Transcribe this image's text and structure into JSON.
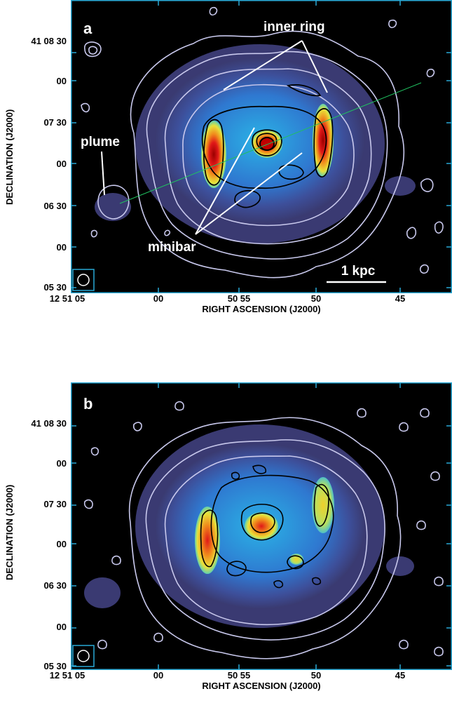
{
  "chart_data": [
    {
      "type": "heatmap",
      "panel_label": "a",
      "xlabel": "RIGHT ASCENSION (J2000)",
      "ylabel": "DECLINATION (J2000)",
      "xticks": [
        "12 51 05",
        "00",
        "50 55",
        "50",
        "45"
      ],
      "yticks": [
        "41 08 30",
        "00",
        "07 30",
        "00",
        "06 30",
        "00",
        "05 30"
      ],
      "annotations": [
        "inner ring",
        "plume",
        "minibar",
        "1 kpc"
      ],
      "grid": false
    },
    {
      "type": "heatmap",
      "panel_label": "b",
      "xlabel": "RIGHT ASCENSION (J2000)",
      "ylabel": "DECLINATION (J2000)",
      "xticks": [
        "12 51 05",
        "00",
        "50 55",
        "50",
        "45"
      ],
      "yticks": [
        "41 08 30",
        "00",
        "07 30",
        "00",
        "06 30",
        "00",
        "05 30"
      ],
      "annotations": [],
      "grid": false
    }
  ],
  "colors": {
    "frame": "#29a9d6",
    "background": "#000000",
    "outer_contours": "#c8c8ec",
    "inner_contours": "#000000",
    "colormap": [
      "#4a4a88",
      "#2f6fcf",
      "#2ab3e6",
      "#5fd0b0",
      "#e8e23a",
      "#f08a1c",
      "#e01818",
      "#9a0000"
    ],
    "slit_line": "#20c060"
  }
}
